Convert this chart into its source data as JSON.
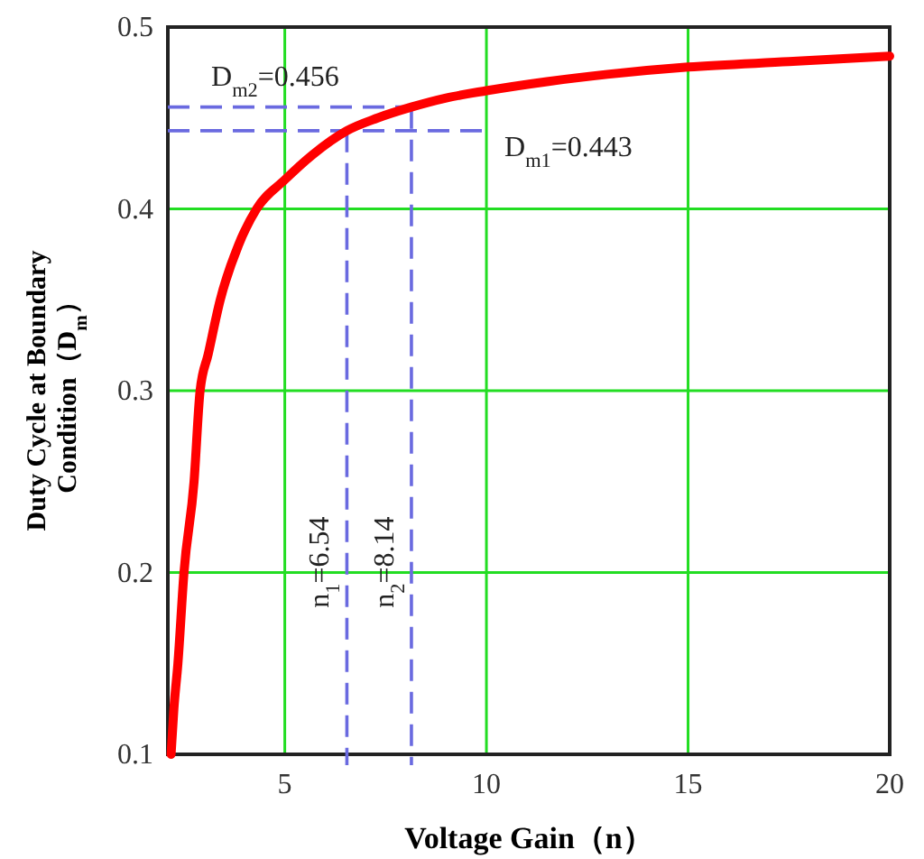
{
  "chart_data": {
    "type": "line",
    "xlabel": "Voltage Gain（n）",
    "ylabel": "Duty Cycle at Boundary Condition（D$_{m}$）",
    "x": [
      2.18,
      2.25,
      2.35,
      2.5,
      2.75,
      2.9,
      3.1,
      3.4,
      3.85,
      4.3,
      5,
      5.7,
      6.54,
      7.3,
      8.14,
      9,
      10,
      11.5,
      13,
      15,
      17.5,
      20
    ],
    "series": [
      {
        "color": "#ff0000",
        "values": [
          0.1,
          0.125,
          0.15,
          0.2,
          0.25,
          0.3,
          0.32,
          0.35,
          0.38,
          0.4,
          0.416,
          0.43,
          0.443,
          0.45,
          0.456,
          0.461,
          0.465,
          0.47,
          0.474,
          0.478,
          0.481,
          0.484
        ]
      }
    ],
    "xlim": [
      2.1,
      20
    ],
    "xticks": [
      5,
      10,
      15,
      20
    ],
    "ylim": [
      0.1,
      0.5
    ],
    "yticks": [
      0.1,
      0.2,
      0.3,
      0.4,
      0.5
    ],
    "grid": true,
    "marker": "none",
    "line_style": "solid",
    "ref_lines": [
      {
        "axis": "y",
        "value": 0.456,
        "label": "D$_{m2}$=0.456",
        "color": "#6a6ae0",
        "line_style": "dashed"
      },
      {
        "axis": "y",
        "value": 0.443,
        "label": "D$_{m1}$=0.443",
        "color": "#6a6ae0",
        "line_style": "dashed"
      },
      {
        "axis": "x",
        "value": 6.54,
        "label": "n$_{1}$=6.54",
        "color": "#6a6ae0",
        "line_style": "dashed"
      },
      {
        "axis": "x",
        "value": 8.14,
        "label": "n$_{2}$=8.14",
        "color": "#6a6ae0",
        "line_style": "dashed"
      }
    ]
  }
}
